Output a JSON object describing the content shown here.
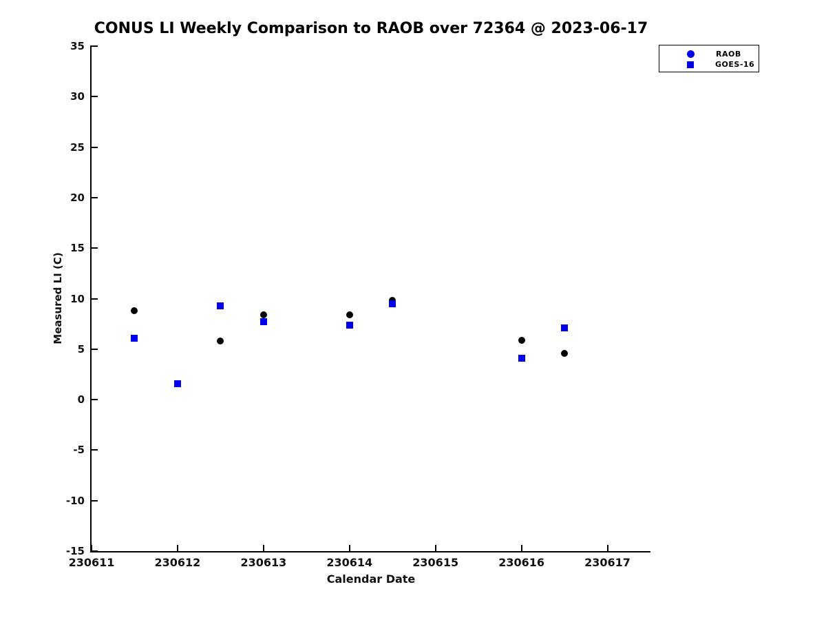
{
  "figure": {
    "background_color": "#ffffff",
    "text_color": "#000000"
  },
  "chart_data": {
    "type": "scatter",
    "title": "CONUS LI Weekly Comparison to RAOB over 72364 @ 2023-06-17",
    "xlabel": "Calendar Date",
    "ylabel": "Measured LI (C)",
    "xlim": [
      230611,
      230617.5
    ],
    "ylim": [
      -15,
      35
    ],
    "xticks": [
      230611,
      230612,
      230613,
      230614,
      230615,
      230616,
      230617
    ],
    "yticks": [
      35,
      30,
      25,
      20,
      15,
      10,
      5,
      0,
      -5,
      -10,
      -15
    ],
    "grid": false,
    "legend_position": "top-right",
    "axis_color": "#000000",
    "series": [
      {
        "name": "RAOB",
        "marker": "circle",
        "color": "#000000",
        "legend_marker_color": "#0000ee",
        "points": [
          [
            230611.5,
            8.8
          ],
          [
            230612.0,
            1.6
          ],
          [
            230612.5,
            5.8
          ],
          [
            230613.0,
            8.4
          ],
          [
            230614.0,
            8.4
          ],
          [
            230614.5,
            9.8
          ],
          [
            230616.0,
            5.9
          ],
          [
            230616.5,
            4.6
          ]
        ]
      },
      {
        "name": "GOES-16",
        "marker": "square",
        "color": "#0000ee",
        "legend_marker_color": "#0000ee",
        "points": [
          [
            230611.5,
            6.1
          ],
          [
            230612.0,
            1.6
          ],
          [
            230612.5,
            9.3
          ],
          [
            230613.0,
            7.7
          ],
          [
            230614.0,
            7.4
          ],
          [
            230614.5,
            9.5
          ],
          [
            230616.0,
            4.1
          ],
          [
            230616.5,
            7.1
          ]
        ]
      }
    ]
  }
}
